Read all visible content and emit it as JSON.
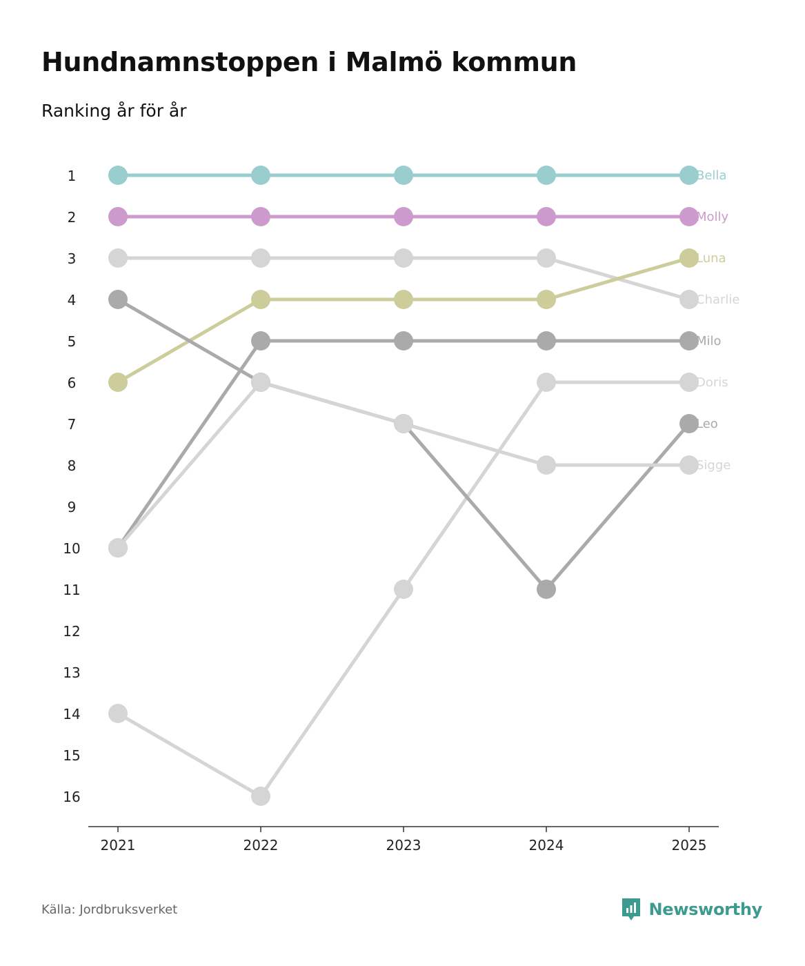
{
  "title": "Hundnamnstoppen i Malmö kommun",
  "subtitle": "Ranking år för år",
  "source": "Källa: Jordbruksverket",
  "brand": {
    "name": "Newsworthy",
    "icon": "newsworthy-logo-icon",
    "color": "#3d9a8f"
  },
  "chart_data": {
    "type": "line",
    "subtype": "bump",
    "title": "Hundnamnstoppen i Malmö kommun",
    "subtitle": "Ranking år för år",
    "xlabel": "",
    "ylabel": "",
    "categories": [
      "2021",
      "2022",
      "2023",
      "2024",
      "2025"
    ],
    "y_ticks": [
      "1",
      "2",
      "3",
      "4",
      "5",
      "6",
      "7",
      "8",
      "9",
      "10",
      "11",
      "12",
      "13",
      "14",
      "15",
      "16"
    ],
    "ylim": [
      1,
      16
    ],
    "y_inverted": true,
    "series": [
      {
        "name": "Bella",
        "color": "#9acdce",
        "values": [
          1,
          1,
          1,
          1,
          1
        ]
      },
      {
        "name": "Molly",
        "color": "#cc9acd",
        "values": [
          2,
          2,
          2,
          2,
          2
        ]
      },
      {
        "name": "Charlie",
        "color": "#d5d5d5",
        "values": [
          3,
          3,
          3,
          3,
          4
        ]
      },
      {
        "name": "Luna",
        "color": "#cccd9a",
        "values": [
          6,
          4,
          4,
          4,
          3
        ]
      },
      {
        "name": "Milo",
        "color": "#aaaaaa",
        "values": [
          10,
          5,
          5,
          5,
          5
        ]
      },
      {
        "name": "Doris",
        "color": "#d5d5d5",
        "values": [
          14,
          16,
          11,
          6,
          6
        ]
      },
      {
        "name": "Leo",
        "color": "#aaaaaa",
        "values": [
          4,
          6,
          7,
          11,
          7
        ]
      },
      {
        "name": "Sigge",
        "color": "#d5d5d5",
        "values": [
          10,
          6,
          7,
          8,
          8
        ]
      }
    ]
  }
}
